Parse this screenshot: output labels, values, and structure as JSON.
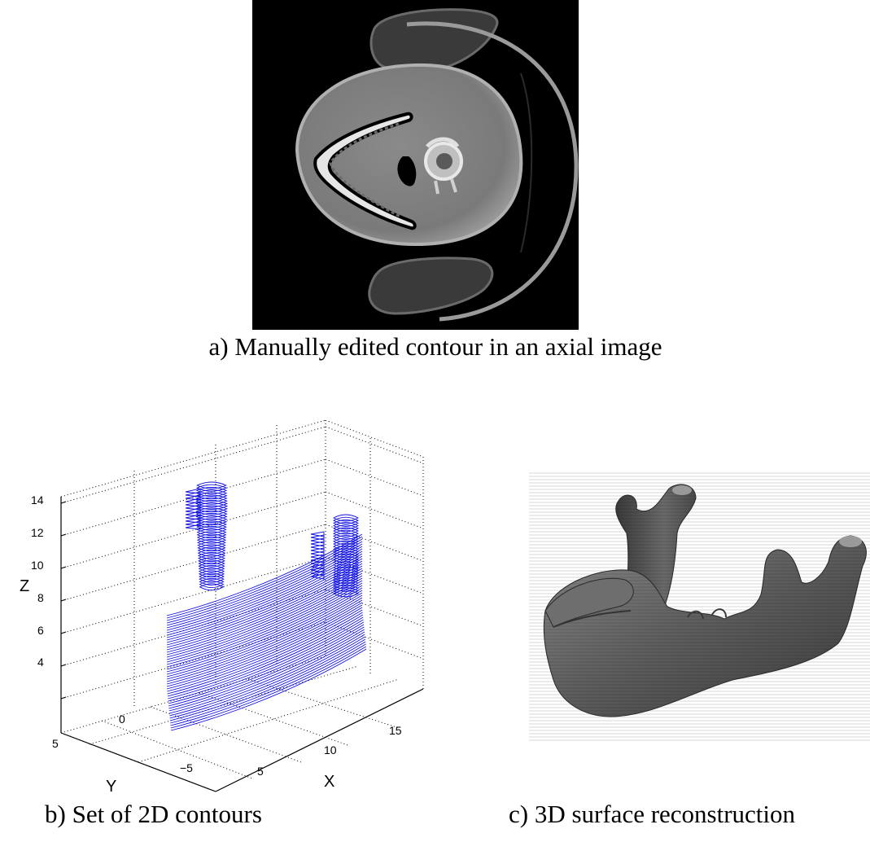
{
  "figure": {
    "panel_a": {
      "caption": "a) Manually edited contour in an axial image"
    },
    "panel_b": {
      "caption": "b) Set of 2D contours",
      "contour_color": "#1010e0"
    },
    "panel_c": {
      "caption": "c) 3D surface reconstruction",
      "surface_color": "#555555"
    }
  },
  "chart_data": {
    "type": "scatter",
    "title": "",
    "xlabel": "X",
    "ylabel": "Y",
    "zlabel": "Z",
    "x_ticks": [
      "5",
      "10",
      "15"
    ],
    "y_ticks": [
      "5",
      "0",
      "−5"
    ],
    "z_ticks": [
      "4",
      "6",
      "8",
      "10",
      "12",
      "14"
    ],
    "zlim": [
      3,
      15
    ],
    "grid": true,
    "projection": "3d"
  }
}
